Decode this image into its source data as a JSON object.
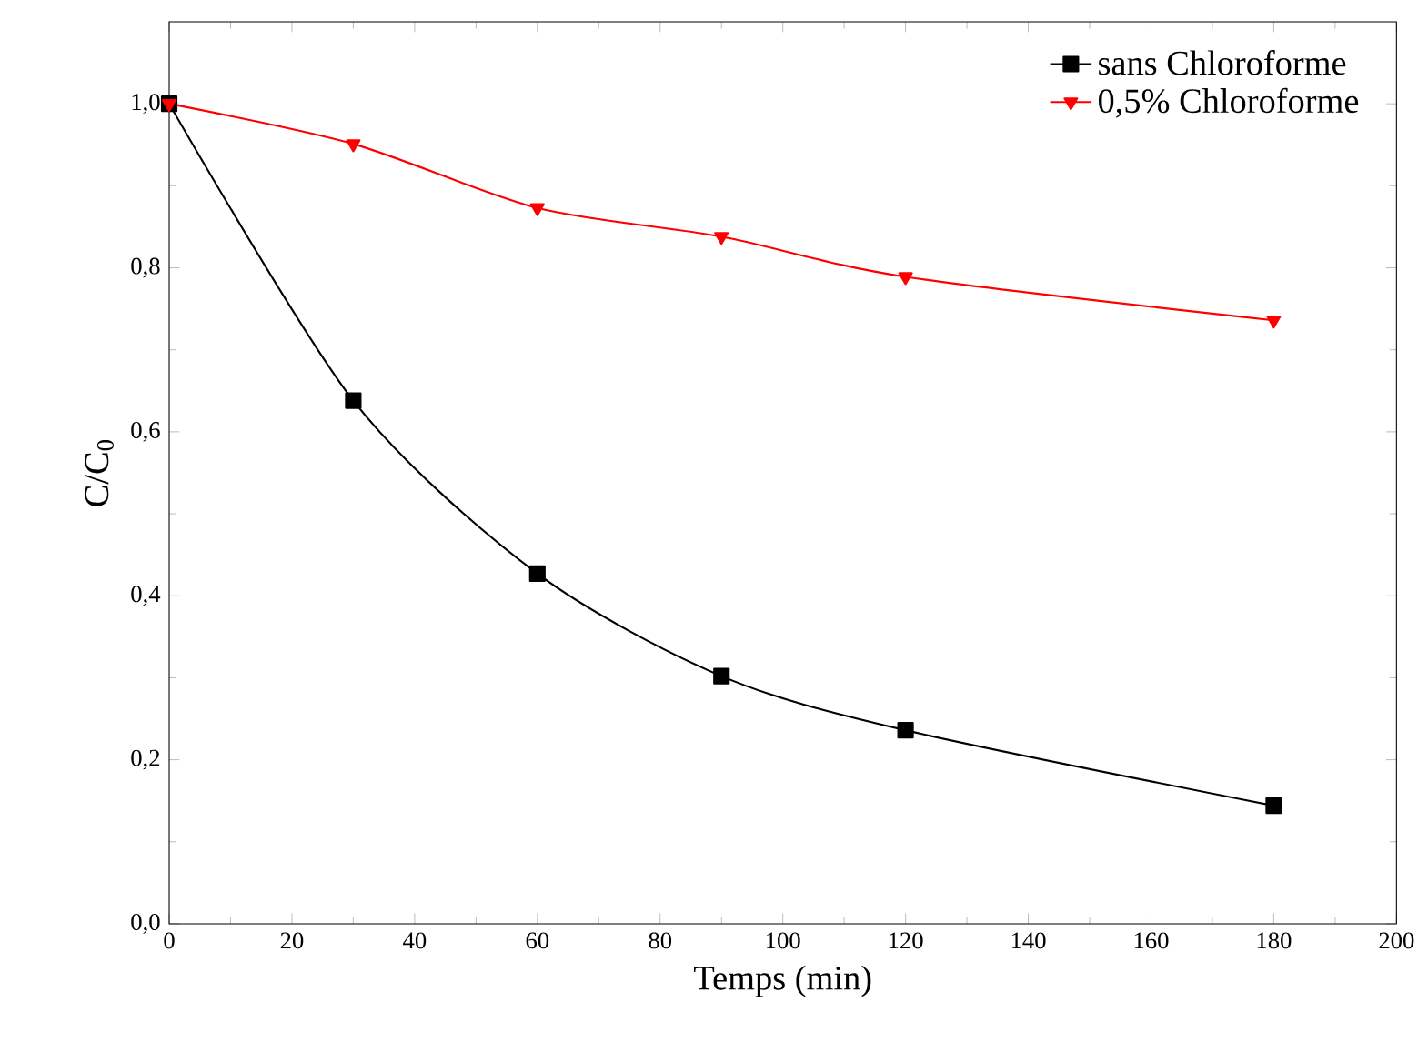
{
  "chart_data": {
    "type": "line",
    "xlabel": "Temps (min)",
    "ylabel": "C/C$_{0}$",
    "x": [
      0,
      30,
      60,
      90,
      120,
      180
    ],
    "series": [
      {
        "name": "sans   Chloroforme",
        "color": "#000000",
        "marker": "square",
        "values": [
          1.0,
          0.638,
          0.427,
          0.302,
          0.236,
          0.144
        ]
      },
      {
        "name": "0,5%  Chloroforme",
        "color": "#ff0000",
        "marker": "triangle",
        "values": [
          1.0,
          0.951,
          0.873,
          0.838,
          0.789,
          0.736
        ]
      }
    ],
    "xlim": [
      0,
      200
    ],
    "ylim": [
      0,
      1.1
    ],
    "xticks": [
      0,
      20,
      40,
      60,
      80,
      100,
      120,
      140,
      160,
      180,
      200
    ],
    "yticks": [
      {
        "value": 0,
        "label": "0,0"
      },
      {
        "value": 0.2,
        "label": "0,2"
      },
      {
        "value": 0.4,
        "label": "0,4"
      },
      {
        "value": 0.6,
        "label": "0,6"
      },
      {
        "value": 0.8,
        "label": "0,8"
      },
      {
        "value": 1.0,
        "label": "1,0"
      }
    ],
    "grid": false,
    "legend": "top right",
    "line_style": "solid"
  }
}
